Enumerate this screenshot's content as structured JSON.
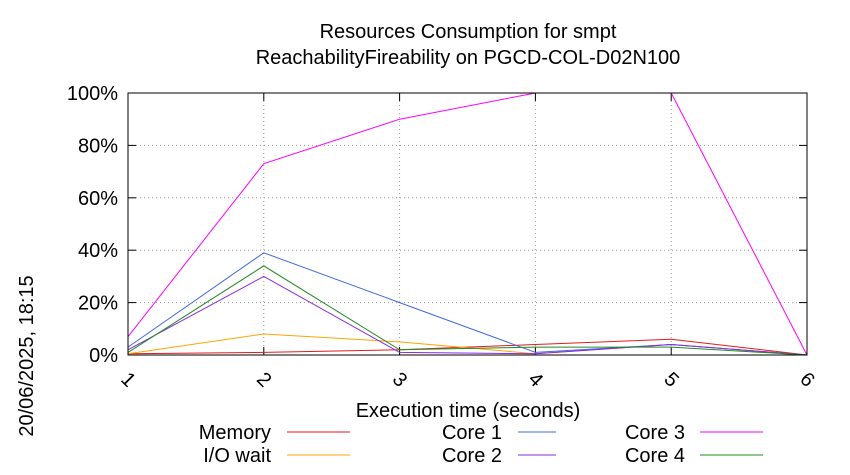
{
  "chart_data": {
    "type": "line",
    "title": "Resources Consumption for smpt",
    "subtitle": "ReachabilityFireability on PGCD-COL-D02N100",
    "xlabel": "Execution time (seconds)",
    "ylabel": "",
    "side_label": "20/06/2025, 18:15",
    "x": [
      1,
      2,
      3,
      4,
      5,
      6
    ],
    "x_tick_labels": [
      "1",
      "2",
      "3",
      "4",
      "5",
      "6"
    ],
    "xlim": [
      1,
      6
    ],
    "ylim": [
      0,
      100
    ],
    "y_tick_values": [
      0,
      20,
      40,
      60,
      80,
      100
    ],
    "y_tick_labels": [
      "0%",
      "20%",
      "40%",
      "60%",
      "80%",
      "100%"
    ],
    "grid": true,
    "legend_position": "bottom",
    "series": [
      {
        "name": "Memory",
        "color": "#e41a1c",
        "values": [
          0.5,
          1,
          2,
          4,
          6,
          0
        ]
      },
      {
        "name": "I/O wait",
        "color": "#ffa500",
        "values": [
          0.5,
          8,
          5,
          0.5,
          4,
          0
        ]
      },
      {
        "name": "Core 1",
        "color": "#4169e1",
        "values": [
          3,
          39,
          20,
          1,
          4,
          0
        ]
      },
      {
        "name": "Core 2",
        "color": "#8a2be2",
        "values": [
          2,
          30,
          1,
          0.5,
          4,
          0
        ]
      },
      {
        "name": "Core 3",
        "color": "#ff00ff",
        "values": [
          7,
          73,
          90,
          100,
          100,
          0
        ]
      },
      {
        "name": "Core 4",
        "color": "#228b22",
        "values": [
          1,
          34,
          2,
          3,
          3,
          0
        ]
      }
    ]
  }
}
